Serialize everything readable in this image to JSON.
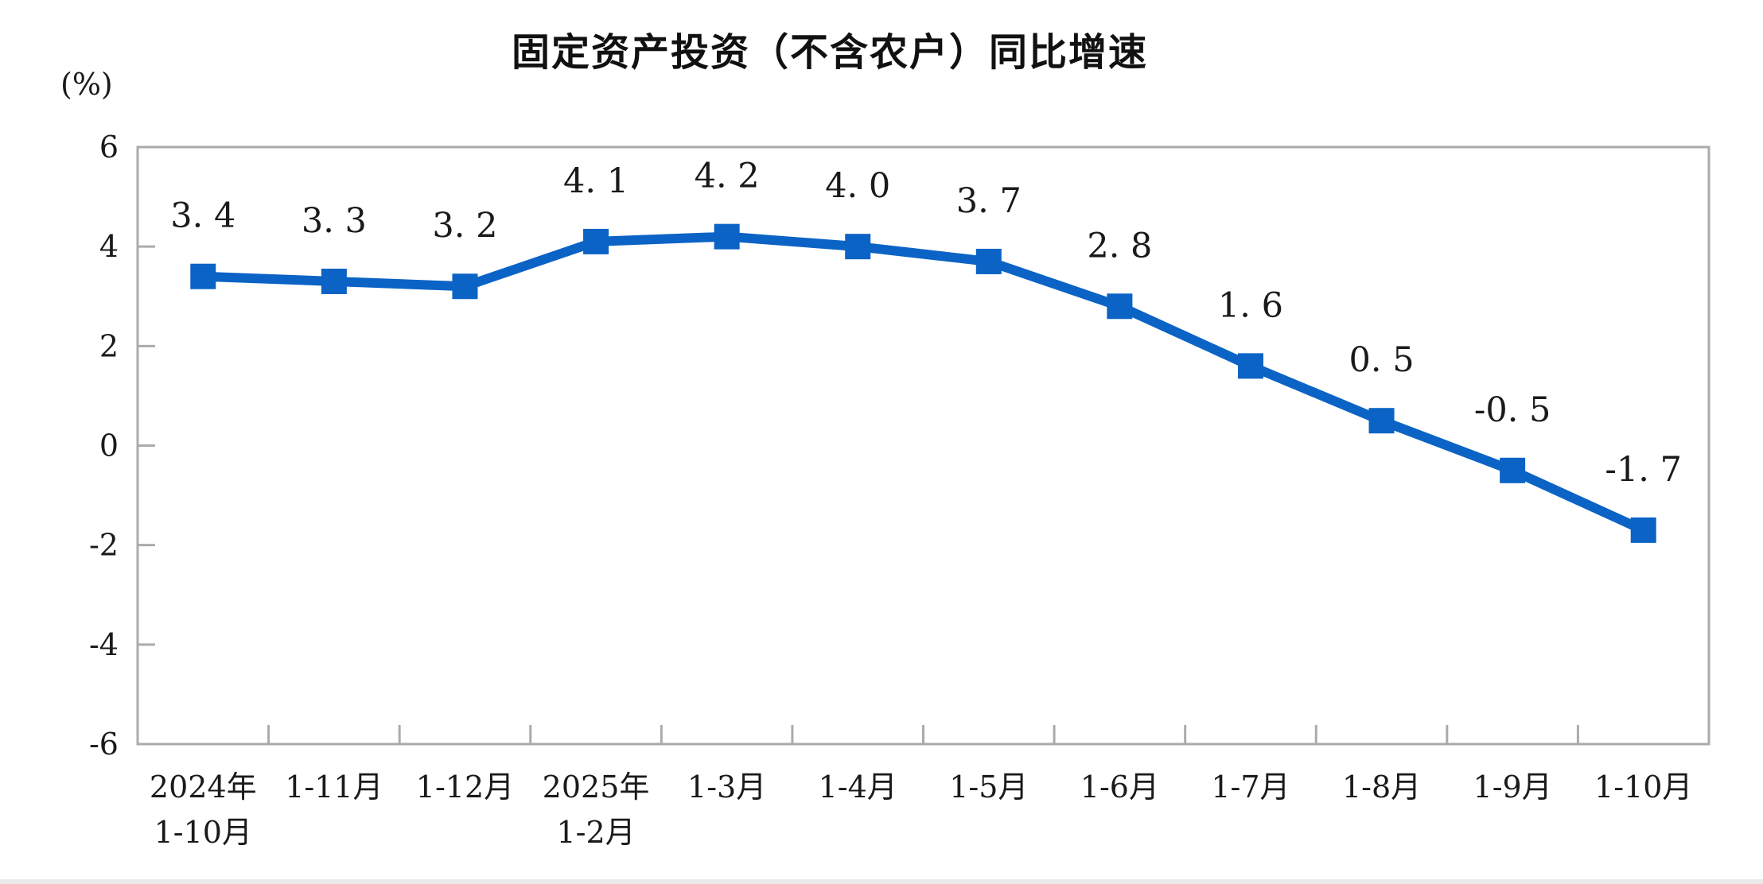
{
  "chart_data": {
    "type": "line",
    "title": "固定资产投资（不含农户）同比增速",
    "ylabel": "(%)",
    "xlabel": "",
    "ylim": [
      -6,
      6
    ],
    "yticks": [
      6,
      4,
      2,
      0,
      -2,
      -4,
      -6
    ],
    "grid": false,
    "legend": "none",
    "marker": "square",
    "categories": [
      [
        "2024年",
        "1-10月"
      ],
      [
        "1-11月"
      ],
      [
        "1-12月"
      ],
      [
        "2025年",
        "1-2月"
      ],
      [
        "1-3月"
      ],
      [
        "1-4月"
      ],
      [
        "1-5月"
      ],
      [
        "1-6月"
      ],
      [
        "1-7月"
      ],
      [
        "1-8月"
      ],
      [
        "1-9月"
      ],
      [
        "1-10月"
      ]
    ],
    "values": [
      3.4,
      3.3,
      3.2,
      4.1,
      4.2,
      4.0,
      3.7,
      2.8,
      1.6,
      0.5,
      -0.5,
      -1.7
    ],
    "point_labels": [
      "3. 4",
      "3. 3",
      "3. 2",
      "4. 1",
      "4. 2",
      "4. 0",
      "3. 7",
      "2. 8",
      "1. 6",
      "0. 5",
      "-0. 5",
      "-1. 7"
    ],
    "colors": {
      "line": "#0b63c5",
      "marker": "#0b63c5",
      "axis": "#ababab",
      "text": "#1a1a1a",
      "background": "#ffffff"
    }
  }
}
